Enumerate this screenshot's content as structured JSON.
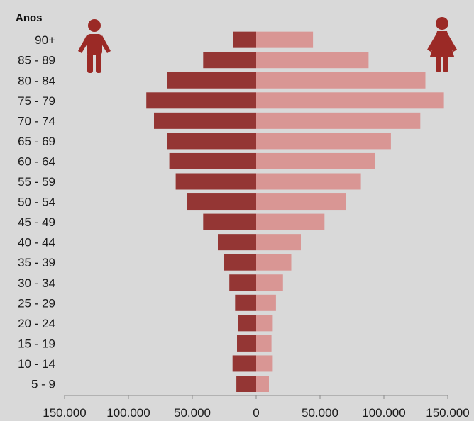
{
  "chart_data": {
    "type": "bar",
    "orientation": "horizontal",
    "subtype": "population-pyramid",
    "y_axis_title": "Anos",
    "categories": [
      "5 - 9",
      "10 - 14",
      "15 - 19",
      "20 - 24",
      "25 - 29",
      "30 - 34",
      "35 - 39",
      "40 - 44",
      "45 - 49",
      "50 - 54",
      "55 - 59",
      "60 - 64",
      "65 - 69",
      "70 - 74",
      "75 - 79",
      "80 - 84",
      "85 - 89",
      "90+"
    ],
    "series": [
      {
        "values": [
          15500,
          18500,
          15000,
          14000,
          16500,
          21000,
          25000,
          30000,
          41500,
          54000,
          63000,
          68000,
          69500,
          80000,
          86000,
          70000,
          41500,
          18000
        ],
        "color": "#943634",
        "side": "left"
      },
      {
        "values": [
          10000,
          13000,
          12000,
          13000,
          15500,
          21000,
          27500,
          35000,
          53500,
          70000,
          82000,
          93000,
          105500,
          128500,
          147000,
          132500,
          88000,
          44500
        ],
        "color": "#d99694",
        "side": "right"
      }
    ],
    "xlim": [
      -150000,
      150000
    ],
    "x_ticks": [
      -150000,
      -100000,
      -50000,
      0,
      50000,
      100000,
      150000
    ],
    "x_tick_labels": [
      "150.000",
      "100.000",
      "50.000",
      "0",
      "50.000",
      "100.000",
      "150.000"
    ],
    "grid": false,
    "legend": "icons",
    "icons": {
      "left": "male-person-icon",
      "right": "female-person-icon",
      "color": "#9b2a26"
    },
    "background": "#d9d9d9"
  }
}
